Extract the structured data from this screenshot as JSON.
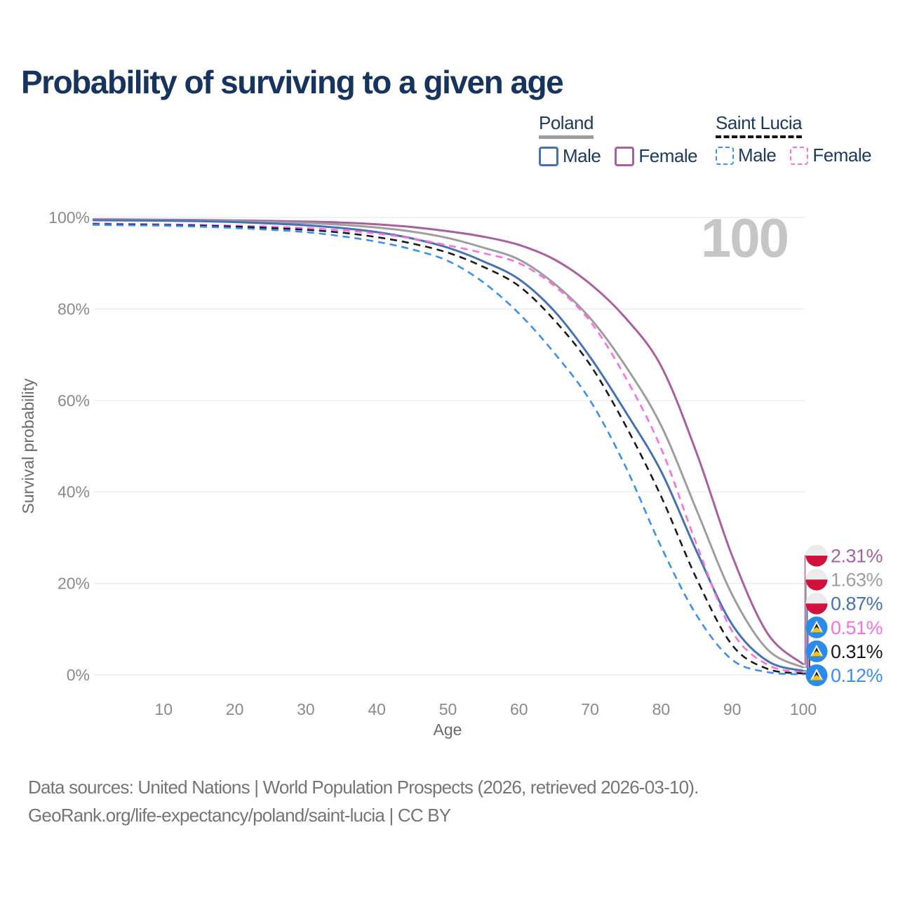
{
  "title": "Probability of surviving to a given age",
  "watermark_age": "100",
  "legend": {
    "groups": [
      {
        "label": "Poland",
        "underline_color": "#9e9e9e",
        "underline_style": "solid",
        "items": [
          {
            "label": "Male",
            "color": "#4472b4",
            "dashed": false
          },
          {
            "label": "Female",
            "color": "#a8609f",
            "dashed": false
          }
        ]
      },
      {
        "label": "Saint Lucia",
        "underline_color": "#141414",
        "underline_style": "dashed",
        "items": [
          {
            "label": "Male",
            "color": "#3a8ef5",
            "dashed": true
          },
          {
            "label": "Female",
            "color": "#f970dd",
            "dashed": true
          }
        ]
      }
    ]
  },
  "chart_data": {
    "type": "line",
    "title": "Probability of surviving to a given age",
    "xlabel": "Age",
    "ylabel": "Survival probability",
    "xlim": [
      0,
      100
    ],
    "ylim": [
      0,
      100
    ],
    "grid": "horizontal",
    "legend_position": "top-right",
    "x_ticks": [
      10,
      20,
      30,
      40,
      50,
      60,
      70,
      80,
      90,
      100
    ],
    "y_ticks": [
      {
        "value": 0,
        "label": "0%"
      },
      {
        "value": 20,
        "label": "20%"
      },
      {
        "value": 40,
        "label": "40%"
      },
      {
        "value": 60,
        "label": "60%"
      },
      {
        "value": 80,
        "label": "80%"
      },
      {
        "value": 100,
        "label": "100%"
      }
    ],
    "x": [
      0,
      5,
      10,
      15,
      20,
      25,
      30,
      35,
      40,
      45,
      50,
      55,
      60,
      65,
      70,
      75,
      80,
      85,
      90,
      95,
      100
    ],
    "series": [
      {
        "name": "Poland Female",
        "id": "poland-female",
        "country": "PL",
        "color": "#a8609f",
        "line": "solid",
        "end_label": "2.31%",
        "values": [
          99.6,
          99.55,
          99.5,
          99.45,
          99.35,
          99.25,
          99.1,
          98.9,
          98.5,
          97.9,
          97.0,
          95.8,
          94.0,
          90.8,
          85.5,
          78.0,
          67.5,
          48.5,
          26.0,
          9.0,
          2.31
        ]
      },
      {
        "name": "Poland",
        "id": "poland-both",
        "country": "PL",
        "color": "#9e9e9e",
        "line": "solid",
        "end_label": "1.63%",
        "values": [
          99.5,
          99.45,
          99.4,
          99.3,
          99.2,
          99.0,
          98.8,
          98.4,
          97.8,
          96.9,
          95.5,
          93.4,
          90.8,
          85.5,
          78.0,
          67.5,
          54.5,
          36.0,
          17.5,
          5.5,
          1.63
        ]
      },
      {
        "name": "Poland Male",
        "id": "poland-male",
        "country": "PL",
        "color": "#4472b4",
        "line": "solid",
        "end_label": "0.87%",
        "values": [
          99.4,
          99.35,
          99.3,
          99.2,
          99.0,
          98.7,
          98.3,
          97.7,
          96.8,
          95.4,
          93.4,
          90.4,
          86.5,
          79.5,
          69.5,
          57.5,
          44.5,
          27.0,
          11.0,
          3.0,
          0.87
        ]
      },
      {
        "name": "Saint Lucia Female",
        "id": "saint-lucia-female",
        "country": "LC",
        "color": "#f970dd",
        "line": "dashed",
        "end_label": "0.51%",
        "values": [
          98.7,
          98.6,
          98.5,
          98.4,
          98.2,
          98.0,
          97.7,
          97.2,
          96.5,
          95.4,
          93.9,
          92.2,
          90.0,
          85.0,
          77.3,
          65.0,
          49.5,
          28.5,
          9.5,
          2.2,
          0.51
        ]
      },
      {
        "name": "Saint Lucia",
        "id": "saint-lucia-both",
        "country": "LC",
        "color": "#1a1a1a",
        "line": "dashed",
        "end_label": "0.31%",
        "values": [
          98.55,
          98.45,
          98.35,
          98.2,
          98.0,
          97.7,
          97.3,
          96.7,
          95.7,
          94.3,
          92.3,
          89.2,
          85.0,
          77.5,
          67.8,
          54.5,
          39.0,
          21.0,
          6.5,
          1.3,
          0.31
        ]
      },
      {
        "name": "Saint Lucia Male",
        "id": "saint-lucia-male",
        "country": "LC",
        "color": "#3a8ef5",
        "line": "dashed",
        "end_label": "0.12%",
        "values": [
          98.4,
          98.3,
          98.2,
          98.0,
          97.7,
          97.3,
          96.8,
          95.9,
          94.7,
          93.0,
          90.5,
          85.8,
          79.0,
          70.3,
          60.0,
          45.5,
          28.0,
          13.0,
          3.3,
          0.6,
          0.12
        ]
      }
    ]
  },
  "footer": {
    "line1": "Data sources: United Nations | World Population Prospects (2026, retrieved 2026-03-10).",
    "line2": "GeoRank.org/life-expectancy/poland/saint-lucia | CC BY"
  }
}
